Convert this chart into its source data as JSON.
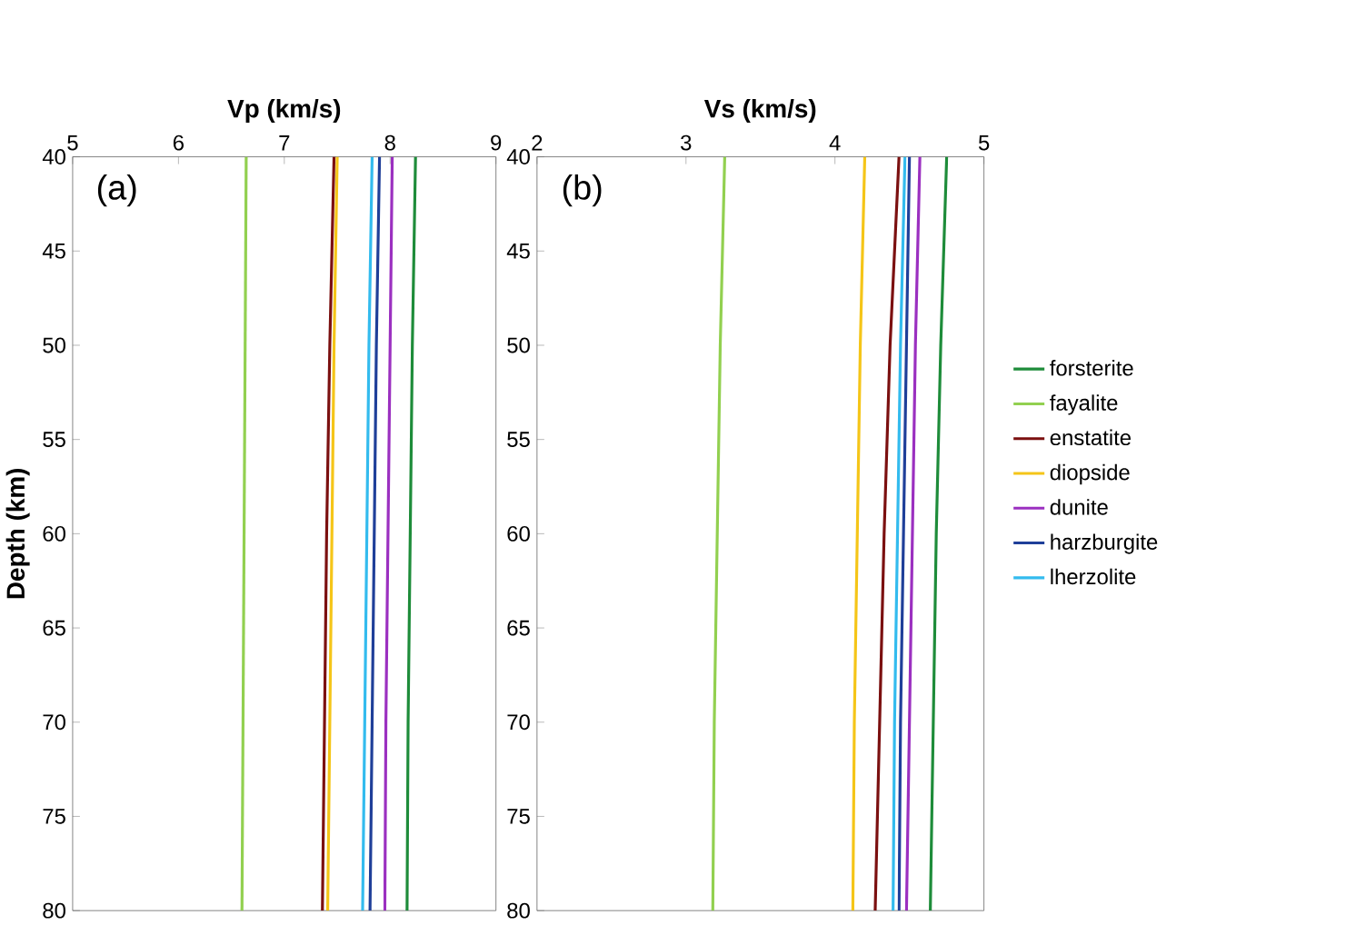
{
  "chart_data": [
    {
      "type": "line",
      "xlabel": "Vp (km/s)",
      "ylabel": "Depth (km)",
      "annotations": [
        "(a)"
      ],
      "xlim": [
        5,
        9
      ],
      "xticks": [
        5,
        6,
        7,
        8,
        9
      ],
      "ylim": [
        80,
        40
      ],
      "yticks": [
        40,
        45,
        50,
        55,
        60,
        65,
        70,
        75,
        80
      ],
      "series": [
        {
          "color": "#1e8c3a",
          "x": [
            8.24,
            8.21,
            8.19,
            8.17,
            8.16
          ],
          "values": [
            40,
            50,
            60,
            70,
            80
          ]
        },
        {
          "color": "#92d050",
          "x": [
            6.64,
            6.63,
            6.62,
            6.61,
            6.6
          ],
          "values": [
            40,
            50,
            60,
            70,
            80
          ]
        },
        {
          "color": "#7b1010",
          "x": [
            7.47,
            7.43,
            7.4,
            7.38,
            7.36
          ],
          "values": [
            40,
            50,
            60,
            70,
            80
          ]
        },
        {
          "color": "#f5c518",
          "x": [
            7.5,
            7.47,
            7.45,
            7.43,
            7.41
          ],
          "values": [
            40,
            50,
            60,
            70,
            80
          ]
        },
        {
          "color": "#9b30c0",
          "x": [
            8.02,
            8.0,
            7.98,
            7.96,
            7.95
          ],
          "values": [
            40,
            50,
            60,
            70,
            80
          ]
        },
        {
          "color": "#1f3f99",
          "x": [
            7.9,
            7.87,
            7.85,
            7.83,
            7.81
          ],
          "values": [
            40,
            50,
            60,
            70,
            80
          ]
        },
        {
          "color": "#33bbee",
          "x": [
            7.83,
            7.8,
            7.78,
            7.76,
            7.74
          ],
          "values": [
            40,
            50,
            60,
            70,
            80
          ]
        }
      ]
    },
    {
      "type": "line",
      "xlabel": "Vs (km/s)",
      "annotations": [
        "(b)"
      ],
      "xlim": [
        2,
        5
      ],
      "xticks": [
        2,
        3,
        4,
        5
      ],
      "ylim": [
        80,
        40
      ],
      "yticks": [
        40,
        45,
        50,
        55,
        60,
        65,
        70,
        75,
        80
      ],
      "legend": "right",
      "series": [
        {
          "name": "forsterite",
          "color": "#1e8c3a",
          "x": [
            4.75,
            4.71,
            4.68,
            4.66,
            4.64
          ],
          "values": [
            40,
            50,
            60,
            70,
            80
          ]
        },
        {
          "name": "fayalite",
          "color": "#92d050",
          "x": [
            3.26,
            3.23,
            3.21,
            3.19,
            3.18
          ],
          "values": [
            40,
            50,
            60,
            70,
            80
          ]
        },
        {
          "name": "enstatite",
          "color": "#7b1010",
          "x": [
            4.43,
            4.37,
            4.33,
            4.3,
            4.27
          ],
          "values": [
            40,
            50,
            60,
            70,
            80
          ]
        },
        {
          "name": "diopside",
          "color": "#f5c518",
          "x": [
            4.2,
            4.17,
            4.15,
            4.13,
            4.12
          ],
          "values": [
            40,
            50,
            60,
            70,
            80
          ]
        },
        {
          "name": "dunite",
          "color": "#9b30c0",
          "x": [
            4.57,
            4.54,
            4.52,
            4.5,
            4.48
          ],
          "values": [
            40,
            50,
            60,
            70,
            80
          ]
        },
        {
          "name": "harzburgite",
          "color": "#1f3f99",
          "x": [
            4.5,
            4.48,
            4.46,
            4.44,
            4.43
          ],
          "values": [
            40,
            50,
            60,
            70,
            80
          ]
        },
        {
          "name": "lherzolite",
          "color": "#33bbee",
          "x": [
            4.47,
            4.44,
            4.42,
            4.4,
            4.39
          ],
          "values": [
            40,
            50,
            60,
            70,
            80
          ]
        }
      ]
    }
  ]
}
